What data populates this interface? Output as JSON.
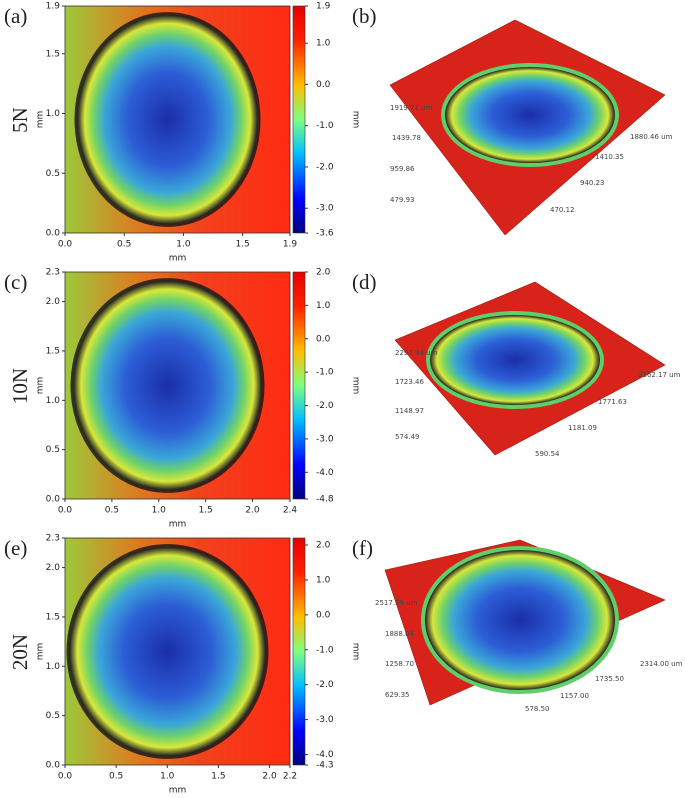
{
  "maps": [
    {
      "label": "(a)",
      "load": "5N",
      "xlabel": "mm",
      "ylabel": "mm",
      "xlim": [
        0,
        1.9
      ],
      "xticks": [
        {
          "value": 0,
          "label": "0.0"
        },
        0.5,
        {
          "value": 1,
          "label": "1.0"
        },
        1.5,
        1.9
      ],
      "ylim": [
        0,
        1.9
      ],
      "yticks": [
        {
          "value": 0,
          "label": "0.0"
        },
        0.5,
        {
          "value": 1,
          "label": "1.0"
        },
        1.5,
        1.9
      ],
      "colorbar": {
        "label": "mm",
        "lim": [
          -3.6,
          1.9
        ],
        "ticks": [
          1.9,
          {
            "value": 1,
            "label": "1.0"
          },
          {
            "value": 0,
            "label": "0.0"
          },
          {
            "value": -1,
            "label": "-1.0"
          },
          {
            "value": -2,
            "label": "-2.0"
          },
          {
            "value": -3,
            "label": "-3.0"
          },
          -3.6
        ]
      }
    },
    {
      "label": "(c)",
      "load": "10N",
      "xlabel": "mm",
      "ylabel": "mm",
      "xlim": [
        0,
        2.4
      ],
      "xticks": [
        {
          "value": 0,
          "label": "0.0"
        },
        0.5,
        {
          "value": 1,
          "label": "1.0"
        },
        1.5,
        {
          "value": 2,
          "label": "2.0"
        },
        2.4
      ],
      "ylim": [
        0,
        2.3
      ],
      "yticks": [
        {
          "value": 0,
          "label": "0.0"
        },
        0.5,
        {
          "value": 1,
          "label": "1.0"
        },
        1.5,
        {
          "value": 2,
          "label": "2.0"
        },
        2.3
      ],
      "colorbar": {
        "label": "mm",
        "lim": [
          -4.8,
          2.0
        ],
        "ticks": [
          {
            "value": 2,
            "label": "2.0"
          },
          {
            "value": 1,
            "label": "1.0"
          },
          {
            "value": 0,
            "label": "0.0"
          },
          {
            "value": -1,
            "label": "-1.0"
          },
          {
            "value": -2,
            "label": "-2.0"
          },
          {
            "value": -3,
            "label": "-3.0"
          },
          {
            "value": -4,
            "label": "-4.0"
          },
          -4.8
        ]
      }
    },
    {
      "label": "(e)",
      "load": "20N",
      "xlabel": "mm",
      "ylabel": "mm",
      "xlim": [
        0,
        2.2
      ],
      "xticks": [
        {
          "value": 0,
          "label": "0.0"
        },
        0.5,
        {
          "value": 1,
          "label": "1.0"
        },
        1.5,
        {
          "value": 2,
          "label": "2.0"
        },
        2.2
      ],
      "ylim": [
        0,
        2.3
      ],
      "yticks": [
        {
          "value": 0,
          "label": "0.0"
        },
        0.5,
        {
          "value": 1,
          "label": "1.0"
        },
        1.5,
        {
          "value": 2,
          "label": "2.0"
        },
        2.3
      ],
      "colorbar": {
        "label": "mm",
        "lim": [
          -4.3,
          2.2
        ],
        "ticks": [
          {
            "value": 2,
            "label": "2.0"
          },
          {
            "value": 1,
            "label": "1.0"
          },
          {
            "value": 0,
            "label": "0.0"
          },
          {
            "value": -1,
            "label": "-1.0"
          },
          {
            "value": -2,
            "label": "-2.0"
          },
          {
            "value": -3,
            "label": "-3.0"
          },
          {
            "value": -4,
            "label": "-4.0"
          },
          -4.3
        ]
      }
    }
  ],
  "views": [
    {
      "label": "(b)",
      "ticks": [
        "1919.71 um",
        "1439.78",
        "959.86",
        "479.93",
        "1880.46 um",
        "1410.35",
        "940.23",
        "470.12"
      ]
    },
    {
      "label": "(d)",
      "ticks": [
        "2297.94 um",
        "1723.46",
        "1148.97",
        "574.49",
        "2362.17 um",
        "1771.63",
        "1181.09",
        "590.54"
      ]
    },
    {
      "label": "(f)",
      "ticks": [
        "2517.39 um",
        "1888.04",
        "1258.70",
        "629.35",
        "2314.00 um",
        "1735.50",
        "1157.00",
        "578.50"
      ]
    }
  ]
}
